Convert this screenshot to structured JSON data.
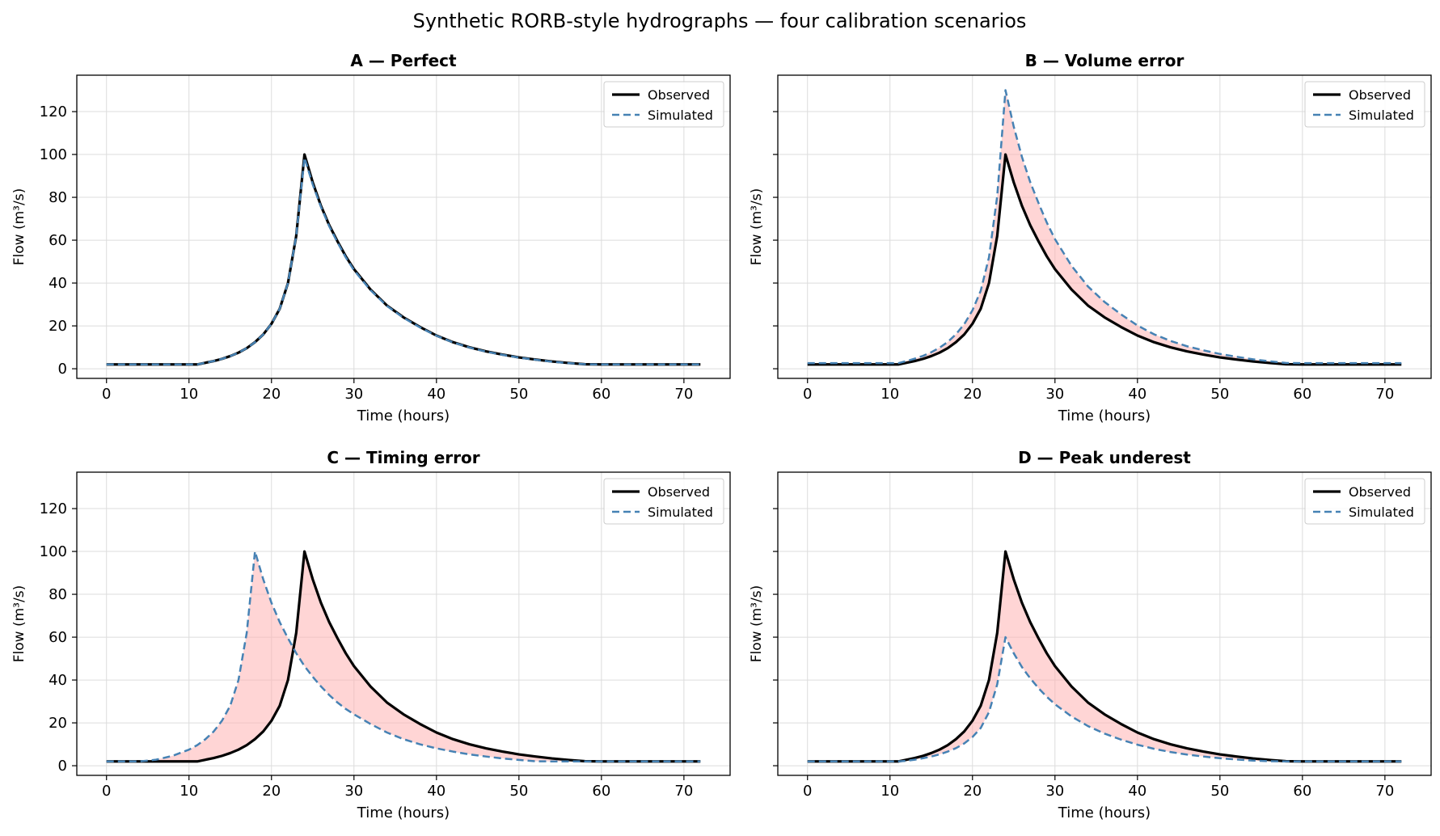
{
  "figure": {
    "title": "Synthetic RORB-style hydrographs — four calibration scenarios"
  },
  "colors": {
    "observed": "#000000",
    "simulated": "#4682b4",
    "fill": "#ffb3b3",
    "grid": "#dcdcdc"
  },
  "chart_data": [
    {
      "type": "line",
      "title": "A — Perfect",
      "xlabel": "Time (hours)",
      "ylabel": "Flow (m³/s)",
      "xlim": [
        -3.6,
        75.6
      ],
      "ylim": [
        -4.5,
        137
      ],
      "xticks": [
        0,
        10,
        20,
        30,
        40,
        50,
        60,
        70
      ],
      "yticks": [
        0,
        20,
        40,
        60,
        80,
        100,
        120
      ],
      "grid": true,
      "legend": "top-right",
      "fill_between": false,
      "x": [
        0,
        2,
        4,
        6,
        8,
        10,
        11,
        12,
        13,
        14,
        15,
        16,
        17,
        18,
        19,
        20,
        21,
        22,
        23,
        24,
        25,
        26,
        27,
        28,
        29,
        30,
        32,
        34,
        36,
        38,
        40,
        42,
        44,
        46,
        48,
        50,
        52,
        54,
        56,
        58,
        60,
        62,
        64,
        66,
        68,
        70,
        72
      ],
      "series": [
        {
          "name": "Observed",
          "values": [
            2,
            2,
            2,
            2,
            2,
            2,
            2,
            2.8,
            3.6,
            4.6,
            5.9,
            7.5,
            9.6,
            12.4,
            16,
            21,
            28,
            40,
            62,
            100,
            87,
            76,
            67,
            59.5,
            52.5,
            46.5,
            37,
            29.5,
            24,
            19.5,
            15.5,
            12.4,
            10,
            8.1,
            6.6,
            5.3,
            4.3,
            3.4,
            2.7,
            2.1,
            2,
            2,
            2,
            2,
            2,
            2,
            2
          ]
        },
        {
          "name": "Simulated",
          "values": [
            2,
            2,
            2,
            2,
            2,
            2,
            2,
            2.8,
            3.6,
            4.6,
            5.9,
            7.5,
            9.6,
            12.4,
            16,
            21,
            28,
            40,
            62,
            98.5,
            86,
            75.5,
            66.5,
            59,
            52,
            46,
            36.7,
            29.3,
            23.8,
            19.3,
            15.4,
            12.3,
            9.9,
            8,
            6.5,
            5.2,
            4.2,
            3.3,
            2.6,
            2.1,
            2,
            2,
            2,
            2,
            2,
            2,
            2
          ]
        }
      ]
    },
    {
      "type": "line",
      "title": "B — Volume error",
      "xlabel": "Time (hours)",
      "ylabel": "Flow (m³/s)",
      "xlim": [
        -3.6,
        75.6
      ],
      "ylim": [
        -4.5,
        137
      ],
      "xticks": [
        0,
        10,
        20,
        30,
        40,
        50,
        60,
        70
      ],
      "yticks": [
        0,
        20,
        40,
        60,
        80,
        100,
        120
      ],
      "grid": true,
      "legend": "top-right",
      "fill_between": true,
      "x": [
        0,
        2,
        4,
        6,
        8,
        10,
        11,
        12,
        13,
        14,
        15,
        16,
        17,
        18,
        19,
        20,
        21,
        22,
        23,
        24,
        25,
        26,
        27,
        28,
        29,
        30,
        32,
        34,
        36,
        38,
        40,
        42,
        44,
        46,
        48,
        50,
        52,
        54,
        56,
        58,
        60,
        62,
        64,
        66,
        68,
        70,
        72
      ],
      "series": [
        {
          "name": "Observed",
          "values": [
            2,
            2,
            2,
            2,
            2,
            2,
            2,
            2.8,
            3.6,
            4.6,
            5.9,
            7.5,
            9.6,
            12.4,
            16,
            21,
            28,
            40,
            62,
            100,
            87,
            76,
            67,
            59.5,
            52.5,
            46.5,
            37,
            29.5,
            24,
            19.5,
            15.5,
            12.4,
            10,
            8.1,
            6.6,
            5.3,
            4.3,
            3.4,
            2.7,
            2.1,
            2,
            2,
            2,
            2,
            2,
            2,
            2
          ]
        },
        {
          "name": "Simulated",
          "values": [
            2.6,
            2.6,
            2.6,
            2.6,
            2.6,
            2.6,
            2.6,
            3.6,
            4.7,
            6,
            7.7,
            9.8,
            12.5,
            16.1,
            20.8,
            27.3,
            36.4,
            52,
            80.6,
            130,
            113,
            98.8,
            87.1,
            77.4,
            68.3,
            60.5,
            48.1,
            38.4,
            31.2,
            25.4,
            20.2,
            16.1,
            13,
            10.5,
            8.6,
            6.9,
            5.6,
            4.4,
            3.5,
            2.7,
            2.6,
            2.6,
            2.6,
            2.6,
            2.6,
            2.6,
            2.6
          ]
        }
      ]
    },
    {
      "type": "line",
      "title": "C — Timing error",
      "xlabel": "Time (hours)",
      "ylabel": "Flow (m³/s)",
      "xlim": [
        -3.6,
        75.6
      ],
      "ylim": [
        -4.5,
        137
      ],
      "xticks": [
        0,
        10,
        20,
        30,
        40,
        50,
        60,
        70
      ],
      "yticks": [
        0,
        20,
        40,
        60,
        80,
        100,
        120
      ],
      "grid": true,
      "legend": "top-right",
      "fill_between": true,
      "x": [
        0,
        2,
        4,
        6,
        8,
        10,
        11,
        12,
        13,
        14,
        15,
        16,
        17,
        18,
        19,
        20,
        21,
        22,
        23,
        24,
        25,
        26,
        27,
        28,
        29,
        30,
        32,
        34,
        36,
        38,
        40,
        42,
        44,
        46,
        48,
        50,
        52,
        54,
        56,
        58,
        60,
        62,
        64,
        66,
        68,
        70,
        72
      ],
      "series": [
        {
          "name": "Observed",
          "values": [
            2,
            2,
            2,
            2,
            2,
            2,
            2,
            2.8,
            3.6,
            4.6,
            5.9,
            7.5,
            9.6,
            12.4,
            16,
            21,
            28,
            40,
            62,
            100,
            87,
            76,
            67,
            59.5,
            52.5,
            46.5,
            37,
            29.5,
            24,
            19.5,
            15.5,
            12.4,
            10,
            8.1,
            6.6,
            5.3,
            4.3,
            3.4,
            2.7,
            2.1,
            2,
            2,
            2,
            2,
            2,
            2,
            2
          ]
        },
        {
          "name": "Simulated",
          "values": [
            2,
            2,
            2,
            2.8,
            4.6,
            7.5,
            9.6,
            12.4,
            16,
            21,
            28,
            40,
            62,
            100,
            87,
            76,
            67,
            59.5,
            52.5,
            46.5,
            41.5,
            37,
            33,
            29.5,
            26.5,
            24,
            19.5,
            15.5,
            12.4,
            10,
            8.1,
            6.6,
            5.3,
            4.3,
            3.4,
            2.7,
            2.1,
            2,
            2,
            2,
            2,
            2,
            2,
            2,
            2,
            2,
            2
          ]
        }
      ]
    },
    {
      "type": "line",
      "title": "D — Peak underest",
      "xlabel": "Time (hours)",
      "ylabel": "Flow (m³/s)",
      "xlim": [
        -3.6,
        75.6
      ],
      "ylim": [
        -4.5,
        137
      ],
      "xticks": [
        0,
        10,
        20,
        30,
        40,
        50,
        60,
        70
      ],
      "yticks": [
        0,
        20,
        40,
        60,
        80,
        100,
        120
      ],
      "grid": true,
      "legend": "top-right",
      "fill_between": true,
      "x": [
        0,
        2,
        4,
        6,
        8,
        10,
        11,
        12,
        13,
        14,
        15,
        16,
        17,
        18,
        19,
        20,
        21,
        22,
        23,
        24,
        25,
        26,
        27,
        28,
        29,
        30,
        32,
        34,
        36,
        38,
        40,
        42,
        44,
        46,
        48,
        50,
        52,
        54,
        56,
        58,
        60,
        62,
        64,
        66,
        68,
        70,
        72
      ],
      "series": [
        {
          "name": "Observed",
          "values": [
            2,
            2,
            2,
            2,
            2,
            2,
            2,
            2.8,
            3.6,
            4.6,
            5.9,
            7.5,
            9.6,
            12.4,
            16,
            21,
            28,
            40,
            62,
            100,
            87,
            76,
            67,
            59.5,
            52.5,
            46.5,
            37,
            29.5,
            24,
            19.5,
            15.5,
            12.4,
            10,
            8.1,
            6.6,
            5.3,
            4.3,
            3.4,
            2.7,
            2.1,
            2,
            2,
            2,
            2,
            2,
            2,
            2
          ]
        },
        {
          "name": "Simulated",
          "values": [
            2,
            2,
            2,
            2,
            2,
            2,
            2,
            2.3,
            2.8,
            3.5,
            4.3,
            5.3,
            6.6,
            8.2,
            10.4,
            13.4,
            17.6,
            25,
            38,
            60,
            52.5,
            46,
            40.8,
            36.2,
            32.2,
            28.7,
            23,
            18.5,
            15,
            12.2,
            9.8,
            7.9,
            6.4,
            5.2,
            4.3,
            3.5,
            2.9,
            2.4,
            2.1,
            2,
            2,
            2,
            2,
            2,
            2,
            2,
            2
          ]
        }
      ]
    }
  ]
}
